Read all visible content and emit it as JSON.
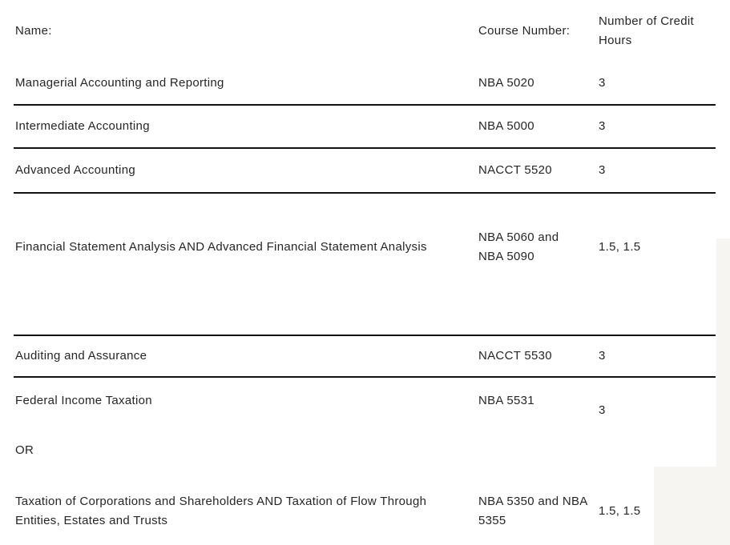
{
  "page": {
    "background_color": "#ffffff",
    "accent_background_color": "#f7f5f1",
    "text_color": "#262626",
    "rule_color": "#111111"
  },
  "table": {
    "columns": {
      "name_label": "Name:",
      "course_label": "Course Number:",
      "credits_label": "Number of Credit\nHours"
    },
    "rows": [
      {
        "name": "Managerial Accounting and Reporting",
        "course": "NBA 5020",
        "credits": "3"
      },
      {
        "name": "Intermediate Accounting",
        "course": "NBA 5000",
        "credits": "3"
      },
      {
        "name": "Advanced Accounting",
        "course": "NACCT 5520",
        "credits": "3"
      },
      {
        "name": "Financial Statement Analysis AND Advanced Financial Statement Analysis",
        "course": "NBA 5060 and\nNBA 5090",
        "credits": "1.5, 1.5"
      },
      {
        "name": "Auditing and Assurance",
        "course": "NACCT 5530",
        "credits": "3"
      },
      {
        "name": "Federal Income Taxation",
        "course": "NBA 5531",
        "credits": "3"
      },
      {
        "name": "OR",
        "course": "",
        "credits": ""
      },
      {
        "name": "Taxation of Corporations and Shareholders AND Taxation of Flow Through\nEntities, Estates and Trusts",
        "course": "NBA 5350 and NBA\n5355",
        "credits": "1.5, 1.5"
      }
    ]
  }
}
